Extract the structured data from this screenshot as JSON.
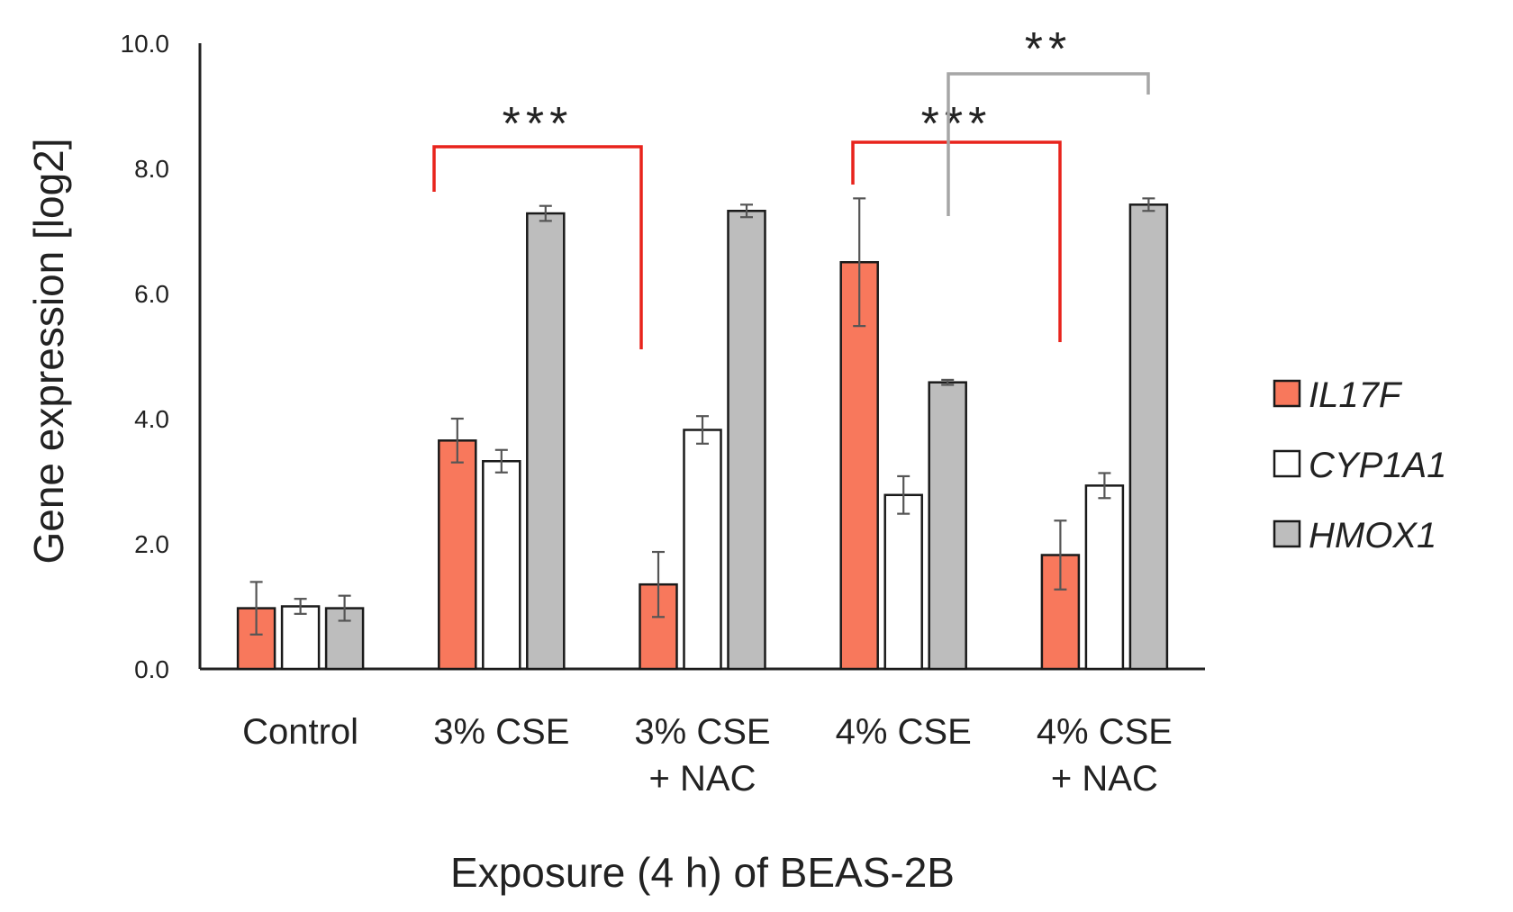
{
  "chart_data": {
    "type": "bar",
    "title": "",
    "xlabel": "Exposure (4 h) of BEAS-2B",
    "ylabel": "Gene expression [log2]",
    "ylim": [
      0,
      10
    ],
    "yticks": [
      "0.0",
      "2.0",
      "4.0",
      "6.0",
      "8.0",
      "10.0"
    ],
    "categories": [
      {
        "lines": [
          "Control"
        ]
      },
      {
        "lines": [
          "3% CSE"
        ]
      },
      {
        "lines": [
          "3% CSE",
          "+ NAC"
        ]
      },
      {
        "lines": [
          "4% CSE"
        ]
      },
      {
        "lines": [
          "4% CSE",
          "+ NAC"
        ]
      }
    ],
    "series": [
      {
        "name": "IL17F",
        "color": "#f8785c",
        "values": [
          0.97,
          3.65,
          1.35,
          6.5,
          1.82
        ],
        "errors": [
          0.42,
          0.35,
          0.52,
          1.02,
          0.55
        ]
      },
      {
        "name": "CYP1A1",
        "color": "#ffffff",
        "values": [
          1.0,
          3.32,
          3.82,
          2.78,
          2.93
        ],
        "errors": [
          0.12,
          0.18,
          0.22,
          0.3,
          0.2
        ]
      },
      {
        "name": "HMOX1",
        "color": "#bdbdbd",
        "values": [
          0.97,
          7.28,
          7.32,
          4.58,
          7.42
        ],
        "errors": [
          0.2,
          0.12,
          0.1,
          0.04,
          0.1
        ]
      }
    ],
    "legend_position": "right",
    "grid": false,
    "significance": [
      {
        "from_category": 1,
        "to_category": 2,
        "label": "***",
        "color": "#e8231c"
      },
      {
        "from_category": 3,
        "to_category": 4,
        "label": "***",
        "color": "#e8231c"
      },
      {
        "from_category": 3,
        "to_category": 4,
        "label": "**",
        "color": "#a6a6a6"
      }
    ]
  }
}
